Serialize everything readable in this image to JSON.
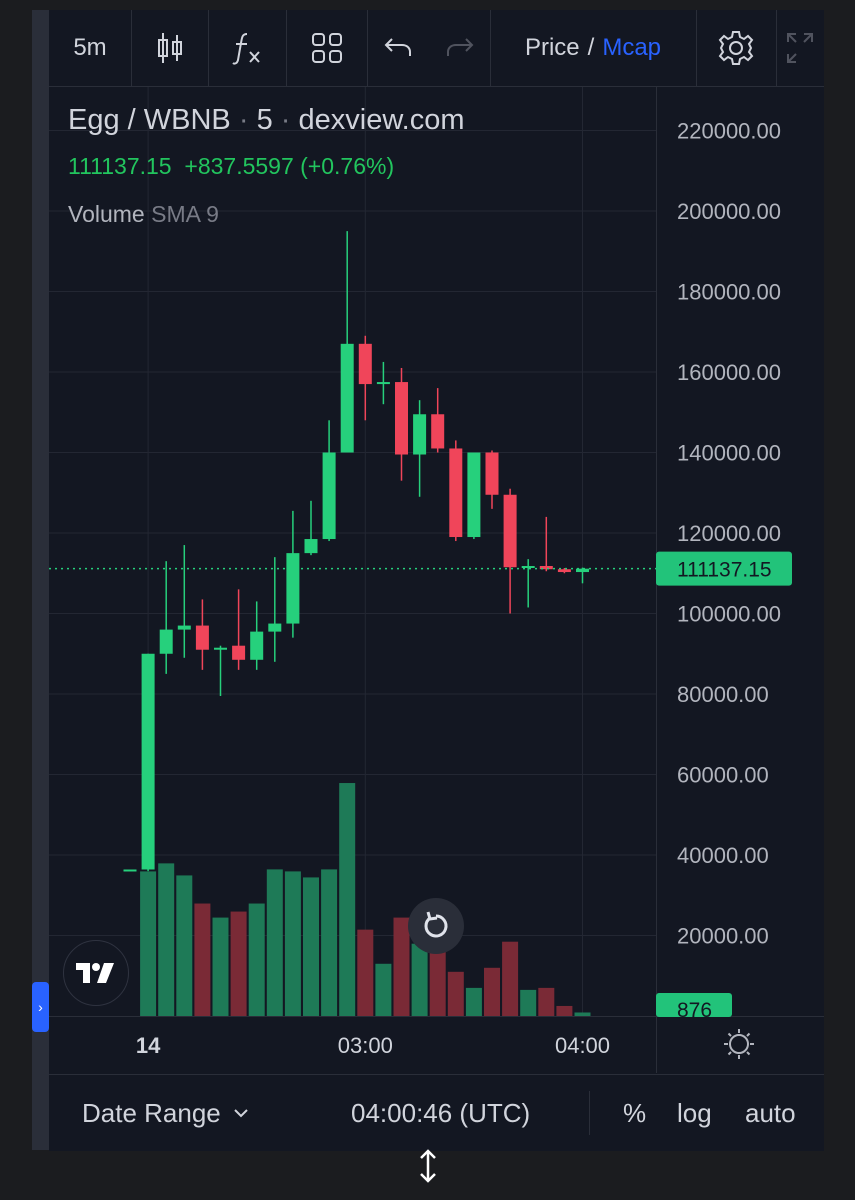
{
  "toolbar": {
    "interval": "5m",
    "price_label": "Price",
    "separator": "/",
    "mcap_label": "Mcap"
  },
  "legend": {
    "pair": "Egg / WBNB",
    "dot1": "·",
    "interval": "5",
    "dot2": "·",
    "source": "dexview.com",
    "last": "111137.15",
    "change": "+837.5597 (+0.76%)",
    "volume_label": "Volume",
    "sma_label": "SMA 9"
  },
  "colors": {
    "up": "#26d07c",
    "down": "#f0455a",
    "vol_up": "#1e7a57",
    "vol_down": "#7a2a36",
    "accent": "#2962ff",
    "last_price_line": "#26d07c"
  },
  "bottom": {
    "date_range": "Date Range",
    "time": "04:00:46 (UTC)",
    "percent": "%",
    "log": "log",
    "auto": "auto"
  },
  "chart_data": {
    "type": "candlestick",
    "interval": "5m",
    "ylim": [
      0,
      230000
    ],
    "y_ticks": [
      "220000.00",
      "200000.00",
      "180000.00",
      "160000.00",
      "140000.00",
      "120000.00",
      "100000.00",
      "80000.00",
      "60000.00",
      "40000.00",
      "20000.00"
    ],
    "y_tick_values": [
      220000,
      200000,
      180000,
      160000,
      140000,
      120000,
      100000,
      80000,
      60000,
      40000,
      20000
    ],
    "x_ticks": [
      {
        "label": "14",
        "index": 1,
        "bold": true
      },
      {
        "label": "03:00",
        "index": 13,
        "bold": false
      },
      {
        "label": "04:00",
        "index": 25,
        "bold": false
      }
    ],
    "last_price": 111137.15,
    "last_price_label": "111137.15",
    "volume_label": "876",
    "volume_ylim": [
      0,
      60000
    ],
    "candles": [
      {
        "o": 36200,
        "h": 36400,
        "l": 36000,
        "c": 36400,
        "v": 0
      },
      {
        "o": 36400,
        "h": 90000,
        "l": 36000,
        "c": 90000,
        "v": 36000
      },
      {
        "o": 90000,
        "h": 113000,
        "l": 85000,
        "c": 96000,
        "v": 38000
      },
      {
        "o": 96000,
        "h": 117000,
        "l": 89000,
        "c": 97000,
        "v": 35000
      },
      {
        "o": 97000,
        "h": 103500,
        "l": 86000,
        "c": 91000,
        "v": 28000
      },
      {
        "o": 91000,
        "h": 92000,
        "l": 79500,
        "c": 91500,
        "v": 24500
      },
      {
        "o": 92000,
        "h": 106000,
        "l": 86000,
        "c": 88500,
        "v": 26000
      },
      {
        "o": 88500,
        "h": 103000,
        "l": 86000,
        "c": 95500,
        "v": 28000
      },
      {
        "o": 95500,
        "h": 114000,
        "l": 88000,
        "c": 97500,
        "v": 36500
      },
      {
        "o": 97500,
        "h": 125500,
        "l": 94000,
        "c": 115000,
        "v": 36000
      },
      {
        "o": 115000,
        "h": 128000,
        "l": 114500,
        "c": 118500,
        "v": 34500
      },
      {
        "o": 118500,
        "h": 148000,
        "l": 118000,
        "c": 140000,
        "v": 36500
      },
      {
        "o": 140000,
        "h": 195000,
        "l": 140000,
        "c": 167000,
        "v": 58000
      },
      {
        "o": 167000,
        "h": 169000,
        "l": 148000,
        "c": 157000,
        "v": 21500
      },
      {
        "o": 157000,
        "h": 162500,
        "l": 152000,
        "c": 157500,
        "v": 13000
      },
      {
        "o": 157500,
        "h": 161000,
        "l": 133000,
        "c": 139500,
        "v": 24500
      },
      {
        "o": 139500,
        "h": 153000,
        "l": 129000,
        "c": 149500,
        "v": 18000
      },
      {
        "o": 149500,
        "h": 156000,
        "l": 140000,
        "c": 141000,
        "v": 17000
      },
      {
        "o": 141000,
        "h": 143000,
        "l": 118000,
        "c": 119000,
        "v": 11000
      },
      {
        "o": 119000,
        "h": 140000,
        "l": 118500,
        "c": 140000,
        "v": 7000
      },
      {
        "o": 140000,
        "h": 140500,
        "l": 126000,
        "c": 129500,
        "v": 12000
      },
      {
        "o": 129500,
        "h": 131000,
        "l": 100000,
        "c": 111500,
        "v": 18500
      },
      {
        "o": 111500,
        "h": 113500,
        "l": 101500,
        "c": 111800,
        "v": 6500
      },
      {
        "o": 111800,
        "h": 124000,
        "l": 110500,
        "c": 111000,
        "v": 7000
      },
      {
        "o": 111000,
        "h": 111300,
        "l": 110000,
        "c": 110300,
        "v": 2500
      },
      {
        "o": 110300,
        "h": 111400,
        "l": 107500,
        "c": 111137,
        "v": 876
      }
    ]
  }
}
